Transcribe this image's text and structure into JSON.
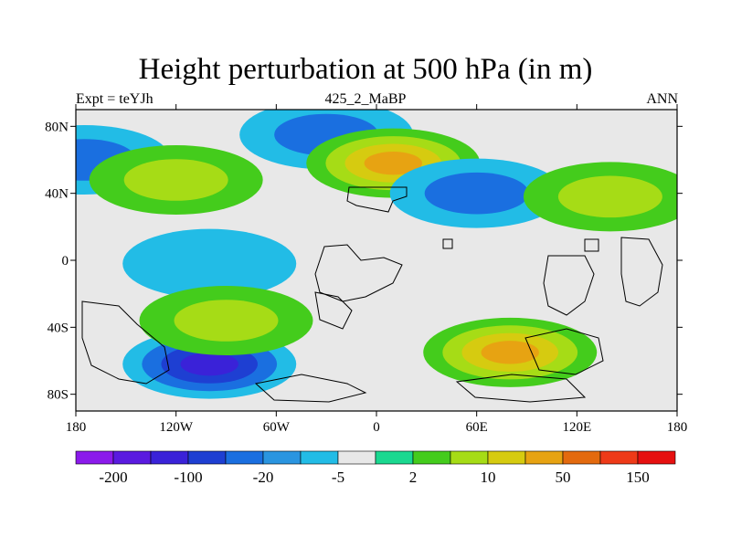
{
  "chart_data": {
    "type": "heatmap",
    "title": "Height perturbation at 500 hPa (in m)",
    "left_label": "Expt = teYJh",
    "center_label": "425_2_MaBP",
    "right_label": "ANN",
    "x_range": [
      -180,
      180
    ],
    "y_range": [
      -90,
      90
    ],
    "x_ticks": [
      {
        "value": -180,
        "label": "180"
      },
      {
        "value": -120,
        "label": "120W"
      },
      {
        "value": -60,
        "label": "60W"
      },
      {
        "value": 0,
        "label": "0"
      },
      {
        "value": 60,
        "label": "60E"
      },
      {
        "value": 120,
        "label": "120E"
      },
      {
        "value": 180,
        "label": "180"
      }
    ],
    "y_ticks": [
      {
        "value": 80,
        "label": "80N"
      },
      {
        "value": 40,
        "label": "40N"
      },
      {
        "value": 0,
        "label": "0"
      },
      {
        "value": -40,
        "label": "40S"
      },
      {
        "value": -80,
        "label": "80S"
      }
    ],
    "colorbar": {
      "colors": [
        "#8B1AEB",
        "#5A1AE0",
        "#3A22D8",
        "#1E3FD2",
        "#1A6FE0",
        "#2A95E0",
        "#22BCE6",
        "#E8E8E8",
        "#1AD890",
        "#44CC1C",
        "#A6DC16",
        "#D6CB10",
        "#E7A312",
        "#E36A0E",
        "#EE3A18",
        "#E61010"
      ],
      "labeled_boundaries": [
        {
          "index": 1,
          "label": "-200"
        },
        {
          "index": 3,
          "label": "-100"
        },
        {
          "index": 5,
          "label": "-20"
        },
        {
          "index": 7,
          "label": "-5"
        },
        {
          "index": 9,
          "label": "2"
        },
        {
          "index": 11,
          "label": "10"
        },
        {
          "index": 13,
          "label": "50"
        },
        {
          "index": 15,
          "label": "150"
        }
      ]
    },
    "field_features": [
      {
        "name": "north-pacific-low",
        "lon": -175,
        "lat": 60,
        "level": -20
      },
      {
        "name": "n-america-high",
        "lon": -120,
        "lat": 48,
        "level": 10
      },
      {
        "name": "n-atlantic-low",
        "lon": -30,
        "lat": 75,
        "level": -20
      },
      {
        "name": "eurasia-high",
        "lon": 10,
        "lat": 58,
        "level": 50
      },
      {
        "name": "asia-low",
        "lon": 60,
        "lat": 40,
        "level": -20
      },
      {
        "name": "n-pacific-high",
        "lon": 140,
        "lat": 38,
        "level": 10
      },
      {
        "name": "tropical-low",
        "lon": -100,
        "lat": -2,
        "level": -5
      },
      {
        "name": "s-indian-high",
        "lon": 80,
        "lat": -55,
        "level": 50
      },
      {
        "name": "s-pacific-low",
        "lon": -100,
        "lat": -62,
        "level": -100
      },
      {
        "name": "s-atlantic-high",
        "lon": -90,
        "lat": -36,
        "level": 10
      }
    ]
  }
}
